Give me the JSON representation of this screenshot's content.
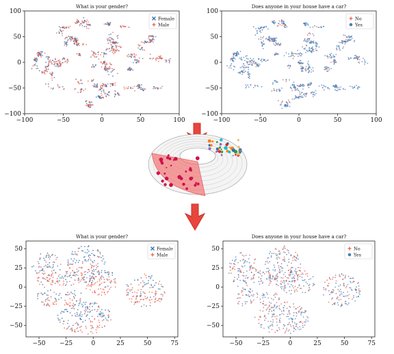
{
  "colors": {
    "female": "#2d6ea8",
    "male": "#f05a44",
    "no": "#f05a44",
    "yes": "#4a7fb5",
    "arrow": "#e8453c"
  },
  "chart_data": [
    {
      "id": "p1",
      "type": "scatter",
      "title": "What is your gender?",
      "xlim": [
        -100,
        100
      ],
      "ylim": [
        -100,
        100
      ],
      "xticks": [
        -100,
        -50,
        0,
        50,
        100
      ],
      "yticks": [
        -100,
        -50,
        0,
        50,
        100
      ],
      "legend": {
        "placement": "top-right",
        "entries": [
          {
            "label": "Female",
            "marker": "x",
            "color": "#2d6ea8"
          },
          {
            "label": "Male",
            "marker": "plus",
            "color": "#f05a44"
          }
        ]
      },
      "style": "clusters"
    },
    {
      "id": "p2",
      "type": "scatter",
      "title": "Does anyone in your house have a car?",
      "xlim": [
        -100,
        100
      ],
      "ylim": [
        -100,
        100
      ],
      "xticks": [
        -100,
        -50,
        0,
        50,
        100
      ],
      "yticks": [
        -100,
        -50,
        0,
        50,
        100
      ],
      "legend": {
        "placement": "top-right",
        "entries": [
          {
            "label": "No",
            "marker": "plus",
            "color": "#f05a44"
          },
          {
            "label": "Yes",
            "marker": "dot",
            "color": "#4a7fb5"
          }
        ]
      },
      "style": "clusters"
    },
    {
      "id": "p3",
      "type": "scatter",
      "title": "What is your gender?",
      "xlim": [
        -62,
        78
      ],
      "ylim": [
        -65,
        60
      ],
      "xticks": [
        -50,
        -25,
        0,
        25,
        50,
        75
      ],
      "yticks": [
        -50,
        -25,
        0,
        25,
        50
      ],
      "legend": {
        "placement": "top-right",
        "entries": [
          {
            "label": "Female",
            "marker": "x",
            "color": "#2d6ea8"
          },
          {
            "label": "Male",
            "marker": "plus",
            "color": "#f05a44"
          }
        ]
      },
      "style": "blobs"
    },
    {
      "id": "p4",
      "type": "scatter",
      "title": "Does anyone in your house have a car?",
      "xlim": [
        -62,
        78
      ],
      "ylim": [
        -65,
        60
      ],
      "xticks": [
        -50,
        -25,
        0,
        25,
        50,
        75
      ],
      "yticks": [
        -50,
        -25,
        0,
        25,
        50
      ],
      "legend": {
        "placement": "top-right",
        "entries": [
          {
            "label": "No",
            "marker": "plus",
            "color": "#f05a44"
          },
          {
            "label": "Yes",
            "marker": "dot",
            "color": "#4a7fb5"
          }
        ]
      },
      "style": "blobs"
    }
  ]
}
